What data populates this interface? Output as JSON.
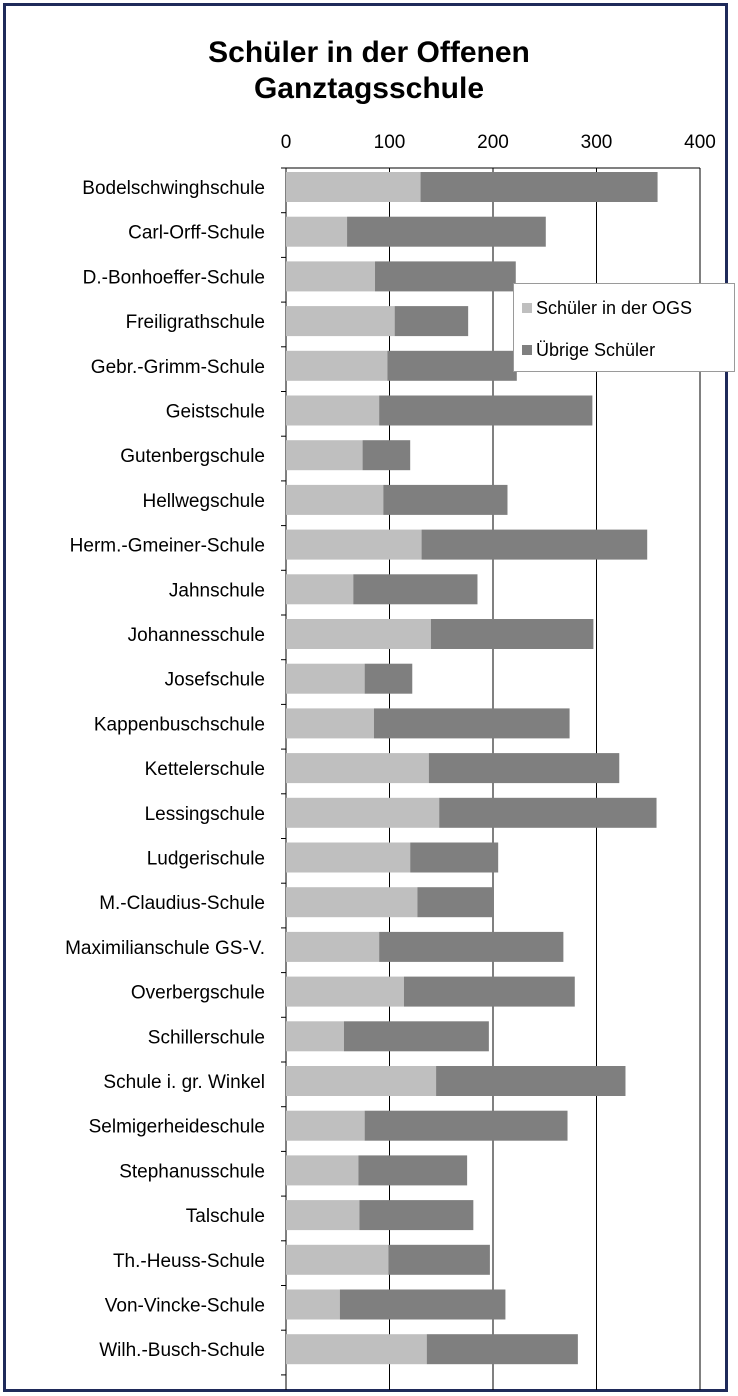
{
  "chart_data": {
    "type": "bar",
    "orientation": "horizontal",
    "stacked": true,
    "title": "Schüler in der Offenen\nGanztagsschule",
    "xlabel": "",
    "ylabel": "",
    "xlim": [
      0,
      400
    ],
    "x_ticks": [
      0,
      100,
      200,
      300,
      400
    ],
    "x_axis_position": "top",
    "grid": "vertical",
    "legend_position": "right",
    "categories": [
      "Bodelschwinghschule",
      "Carl-Orff-Schule",
      "D.-Bonhoeffer-Schule",
      "Freiligrathschule",
      "Gebr.-Grimm-Schule",
      "Geistschule",
      "Gutenbergschule",
      "Hellwegschule",
      "Herm.-Gmeiner-Schule",
      "Jahnschule",
      "Johannesschule",
      "Josefschule",
      "Kappenbuschschule",
      "Kettelerschule",
      "Lessingschule",
      "Ludgerischule",
      "M.-Claudius-Schule",
      "Maximilianschule GS-V.",
      "Overbergschule",
      "Schillerschule",
      "Schule i. gr. Winkel",
      "Selmigerheideschule",
      "Stephanusschule",
      "Talschule",
      "Th.-Heuss-Schule",
      "Von-Vincke-Schule",
      "Wilh.-Busch-Schule"
    ],
    "series": [
      {
        "name": "Schüler in der OGS",
        "color": "#bfbfbf",
        "values": [
          130,
          59,
          86,
          105,
          98,
          90,
          74,
          94,
          131,
          65,
          140,
          76,
          85,
          138,
          148,
          120,
          127,
          90,
          114,
          56,
          145,
          76,
          70,
          71,
          99,
          52,
          136
        ]
      },
      {
        "name": "Übrige Schüler",
        "color": "#7f7f7f",
        "values": [
          229,
          192,
          136,
          71,
          125,
          206,
          46,
          120,
          218,
          120,
          157,
          46,
          189,
          184,
          210,
          85,
          73,
          178,
          165,
          140,
          183,
          196,
          105,
          110,
          98,
          160,
          146
        ]
      }
    ]
  }
}
